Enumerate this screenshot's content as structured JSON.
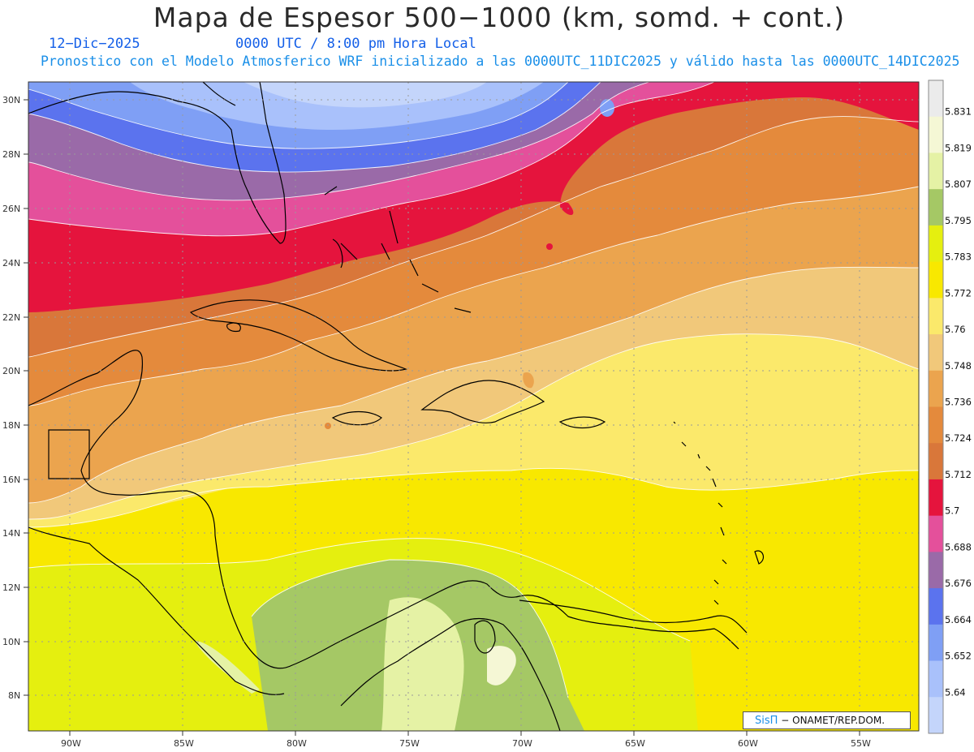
{
  "header": {
    "title": "Mapa de Espesor 500−1000 (km, somd. + cont.)",
    "date": "12−Dic−2025",
    "time": "0000 UTC / 8:00 pm Hora Local",
    "description": "Pronostico con el Modelo Atmosferico WRF inicializado a las 0000UTC_11DIC2025 y válido hasta las  0000UTC_14DIC2025"
  },
  "map": {
    "lat_labels": [
      "30N",
      "28N",
      "26N",
      "24N",
      "22N",
      "20N",
      "18N",
      "16N",
      "14N",
      "12N",
      "10N",
      "8N"
    ],
    "lon_labels": [
      "90W",
      "85W",
      "80W",
      "75W",
      "70W",
      "65W",
      "60W",
      "55W"
    ],
    "lon_range": [
      -92,
      -52.5
    ],
    "lat_range": [
      6.7,
      30.7
    ],
    "gridlines": "dotted"
  },
  "legend": {
    "labels": [
      "5.831",
      "5.819",
      "5.807",
      "5.795",
      "5.783",
      "5.772",
      "5.76",
      "5.748",
      "5.736",
      "5.724",
      "5.712",
      "5.7",
      "5.688",
      "5.676",
      "5.664",
      "5.652",
      "5.64"
    ],
    "colors": [
      "#ebebeb",
      "#f5f7d5",
      "#e5f2a5",
      "#a5c865",
      "#e5ef0f",
      "#f8e800",
      "#fbe96b",
      "#f1c87a",
      "#eba44e",
      "#e48a3c",
      "#d9773a",
      "#e5143d",
      "#e4509b",
      "#9a6aa8",
      "#5b73ee",
      "#7f9ff5",
      "#a9c1fb",
      "#c4d5fb"
    ]
  },
  "credit": {
    "logo": "SisΠ",
    "text": "− ONAMET/REP.DOM."
  }
}
